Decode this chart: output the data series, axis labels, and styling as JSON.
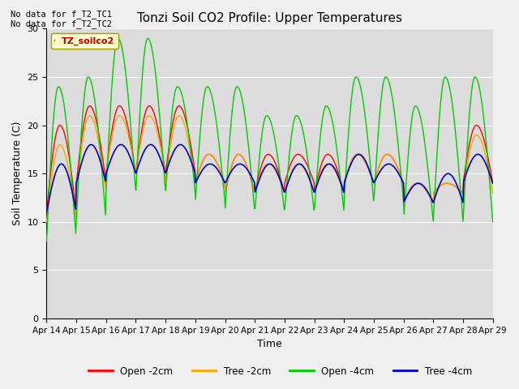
{
  "title": "Tonzi Soil CO2 Profile: Upper Temperatures",
  "xlabel": "Time",
  "ylabel": "Soil Temperature (C)",
  "ylim": [
    0,
    30
  ],
  "background_color": "#dcdcdc",
  "outer_background": "#f0f0f0",
  "grid_color": "white",
  "no_data_text": [
    "No data for f_T2_TC1",
    "No data for f_T2_TC2"
  ],
  "legend_box_label": "TZ_soilco2",
  "series": {
    "open_2cm": {
      "color": "#ff0000",
      "label": "Open -2cm"
    },
    "tree_2cm": {
      "color": "#ffa500",
      "label": "Tree -2cm"
    },
    "open_4cm": {
      "color": "#00cc00",
      "label": "Open -4cm"
    },
    "tree_4cm": {
      "color": "#0000cc",
      "label": "Tree -4cm"
    }
  },
  "xtick_labels": [
    "Apr 14",
    "Apr 15",
    "Apr 16",
    "Apr 17",
    "Apr 18",
    "Apr 19",
    "Apr 20",
    "Apr 21",
    "Apr 22",
    "Apr 23",
    "Apr 24",
    "Apr 25",
    "Apr 26",
    "Apr 27",
    "Apr 28",
    "Apr 29"
  ],
  "ytick_values": [
    0,
    5,
    10,
    15,
    20,
    25,
    30
  ]
}
